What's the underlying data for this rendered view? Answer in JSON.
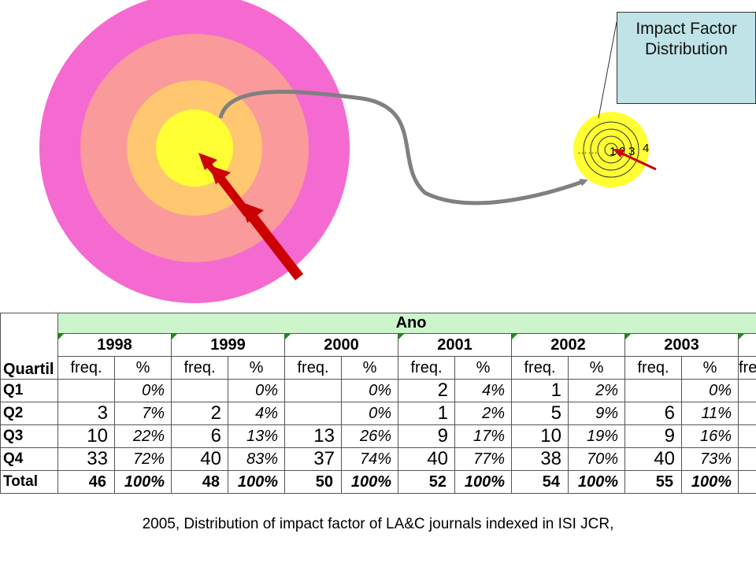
{
  "callout": {
    "line1": "Impact Factor",
    "line2": "Distribution"
  },
  "target_small": {
    "rings": [
      "1",
      "2",
      "3",
      "4"
    ],
    "dots": "……"
  },
  "table": {
    "group_header": "Ano",
    "row_header": "Quartil",
    "freq_label": "freq.",
    "pct_label": "%",
    "years": [
      "1998",
      "1999",
      "2000",
      "2001",
      "2002",
      "2003"
    ],
    "rows": [
      {
        "label": "Q1",
        "cells": [
          [
            "",
            "0%"
          ],
          [
            "",
            "0%"
          ],
          [
            "",
            "0%"
          ],
          [
            "2",
            "4%"
          ],
          [
            "1",
            "2%"
          ],
          [
            "",
            "0%"
          ]
        ]
      },
      {
        "label": "Q2",
        "cells": [
          [
            "3",
            "7%"
          ],
          [
            "2",
            "4%"
          ],
          [
            "",
            "0%"
          ],
          [
            "1",
            "2%"
          ],
          [
            "5",
            "9%"
          ],
          [
            "6",
            "11%"
          ]
        ]
      },
      {
        "label": "Q3",
        "cells": [
          [
            "10",
            "22%"
          ],
          [
            "6",
            "13%"
          ],
          [
            "13",
            "26%"
          ],
          [
            "9",
            "17%"
          ],
          [
            "10",
            "19%"
          ],
          [
            "9",
            "16%"
          ]
        ]
      },
      {
        "label": "Q4",
        "cells": [
          [
            "33",
            "72%"
          ],
          [
            "40",
            "83%"
          ],
          [
            "37",
            "74%"
          ],
          [
            "40",
            "77%"
          ],
          [
            "38",
            "70%"
          ],
          [
            "40",
            "73%"
          ]
        ]
      }
    ],
    "total": {
      "label": "Total",
      "cells": [
        [
          "46",
          "100%"
        ],
        [
          "48",
          "100%"
        ],
        [
          "50",
          "100%"
        ],
        [
          "52",
          "100%"
        ],
        [
          "54",
          "100%"
        ],
        [
          "55",
          "100%"
        ]
      ]
    }
  },
  "caption": "2005, Distribution of impact factor of LA&C journals indexed in ISI JCR,",
  "colors": {
    "ring_outer": "#f56ad0",
    "ring_2": "#fa9a9a",
    "ring_3": "#ffc870",
    "ring_center": "#ffff33",
    "arrow": "#cc0000",
    "curve": "#808080",
    "callout_bg": "#bfe3e6",
    "table_header_bg": "#ccf5cc"
  }
}
